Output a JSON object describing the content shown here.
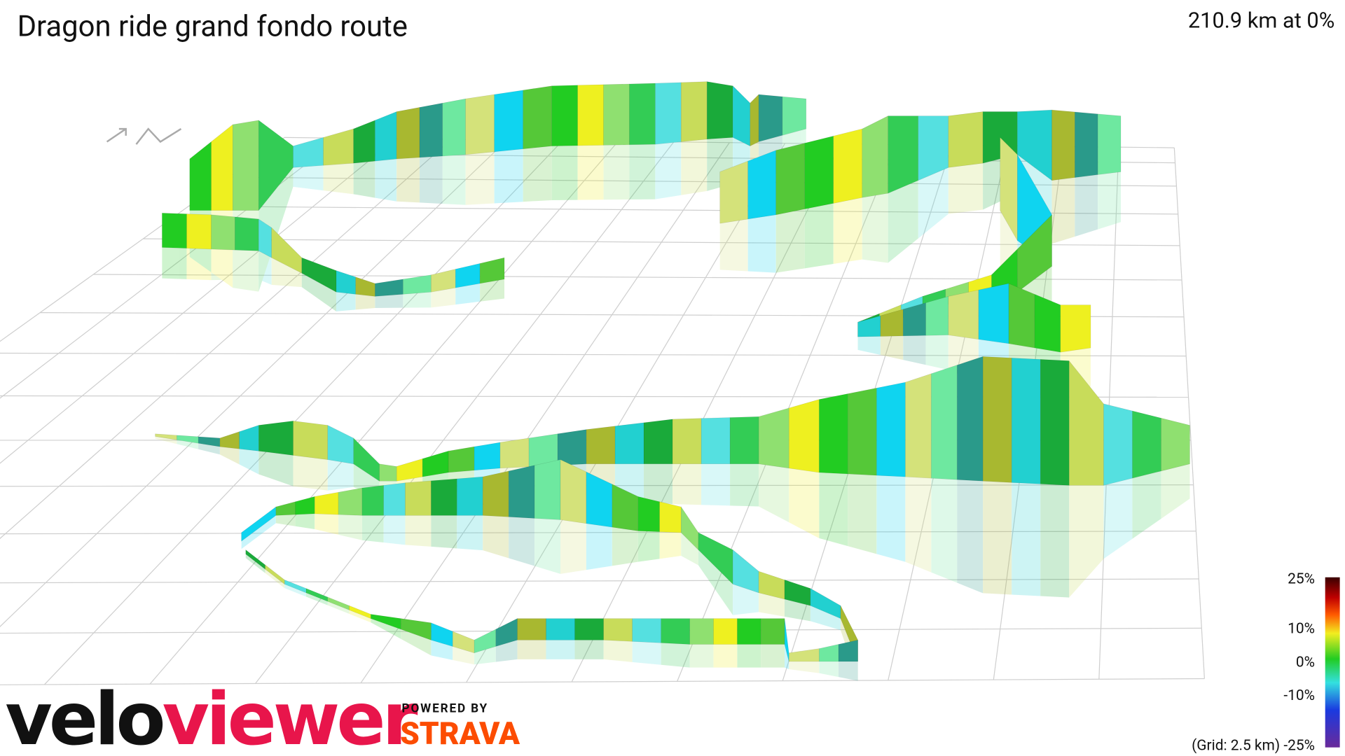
{
  "header": {
    "title": "Dragon ride grand fondo route",
    "stats": "210.9 km at 0%"
  },
  "legend": {
    "labels": [
      "25%",
      "10%",
      "0%",
      "-10%",
      "(Grid: 2.5 km) -25%"
    ]
  },
  "branding": {
    "logo_left": "velo",
    "logo_right": "viewer",
    "powered_by": "POWERED BY",
    "partner": "STRAVA"
  }
}
